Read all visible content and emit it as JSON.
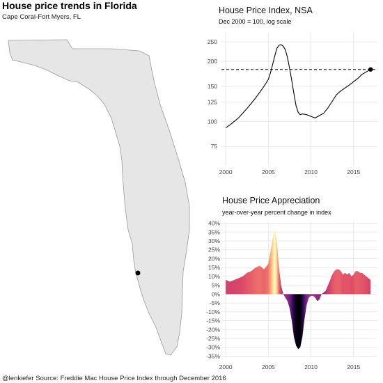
{
  "header": {
    "title": "House price trends in Florida",
    "subtitle": "Cape Coral-Fort Myers, FL"
  },
  "caption": "@lenkiefer Source: Freddie Mac House Price Index through December 2016",
  "map": {
    "state": "Florida",
    "fill_color": "#e6e6e6",
    "outline_color": "#9a9a9a",
    "marker_color": "#000000"
  },
  "chart_data": [
    {
      "type": "line",
      "title": "House Price Index, NSA",
      "subtitle": "Dec 2000 = 100, log scale",
      "scale": "log",
      "xlim": [
        1999.5,
        2017.8
      ],
      "ylim": [
        60,
        280
      ],
      "xticks": [
        2000,
        2005,
        2010,
        2015
      ],
      "xtick_labels": [
        "2000",
        "2005",
        "2010",
        "2015"
      ],
      "yticks": [
        75,
        100,
        125,
        150,
        200,
        250
      ],
      "ytick_labels": [
        "75",
        "100",
        "125",
        "150",
        "200",
        "250"
      ],
      "reference_line": 182,
      "end_point": {
        "x": 2017.0,
        "y": 182
      },
      "grid": true,
      "series": [
        {
          "x": [
            2000.0,
            2000.5,
            2001.0,
            2001.5,
            2002.0,
            2002.5,
            2003.0,
            2003.5,
            2004.0,
            2004.5,
            2005.0,
            2005.25,
            2005.5,
            2005.75,
            2006.0,
            2006.25,
            2006.5,
            2006.75,
            2007.0,
            2007.25,
            2007.5,
            2007.75,
            2008.0,
            2008.25,
            2008.5,
            2008.75,
            2009.0,
            2009.5,
            2010.0,
            2010.5,
            2011.0,
            2011.5,
            2012.0,
            2012.5,
            2013.0,
            2013.5,
            2014.0,
            2014.5,
            2015.0,
            2015.5,
            2016.0,
            2016.5,
            2017.0
          ],
          "values": [
            93,
            96,
            100,
            104,
            110,
            116,
            123,
            131,
            140,
            150,
            162,
            175,
            192,
            212,
            232,
            240,
            242,
            238,
            228,
            208,
            184,
            160,
            138,
            120,
            111,
            108,
            109,
            108,
            106,
            104,
            107,
            110,
            117,
            126,
            136,
            142,
            147,
            152,
            158,
            164,
            172,
            177,
            182
          ]
        }
      ]
    },
    {
      "type": "area",
      "title": "House Price Appreciation",
      "subtitle": "year-over-year percent change in index",
      "xlim": [
        1999.5,
        2017.8
      ],
      "ylim": [
        -36,
        41
      ],
      "xticks": [
        2000,
        2005,
        2010,
        2015
      ],
      "xtick_labels": [
        "2000",
        "2005",
        "2010",
        "2015"
      ],
      "yticks": [
        40,
        35,
        30,
        25,
        20,
        15,
        10,
        5,
        0,
        -5,
        -10,
        -15,
        -20,
        -25,
        -30,
        -35
      ],
      "ytick_labels": [
        "40%",
        "35%",
        "30%",
        "25%",
        "20%",
        "15%",
        "10%",
        "5%",
        "0%",
        "-5%",
        "-10%",
        "-15%",
        "-20%",
        "-25%",
        "-30%",
        "-35%"
      ],
      "grid": true,
      "color_scale": [
        "#000004",
        "#3b0f70",
        "#8c2981",
        "#de4968",
        "#fe9f6d",
        "#fcfdbf"
      ],
      "series": [
        {
          "x": [
            2000.0,
            2000.5,
            2001.0,
            2001.5,
            2002.0,
            2002.5,
            2003.0,
            2003.5,
            2004.0,
            2004.5,
            2005.0,
            2005.25,
            2005.5,
            2005.75,
            2006.0,
            2006.25,
            2006.5,
            2006.75,
            2007.0,
            2007.25,
            2007.5,
            2007.75,
            2008.0,
            2008.25,
            2008.5,
            2008.75,
            2009.0,
            2009.25,
            2009.5,
            2009.75,
            2010.0,
            2010.25,
            2010.5,
            2010.75,
            2011.0,
            2011.25,
            2011.5,
            2011.75,
            2012.0,
            2012.25,
            2012.5,
            2012.75,
            2013.0,
            2013.25,
            2013.5,
            2013.75,
            2014.0,
            2014.25,
            2014.5,
            2014.75,
            2015.0,
            2015.25,
            2015.5,
            2015.75,
            2016.0,
            2016.25,
            2016.5,
            2016.75,
            2017.0
          ],
          "values": [
            8,
            7,
            8,
            9,
            10,
            12,
            13,
            15,
            16,
            14,
            17,
            24,
            31,
            37,
            30,
            15,
            5,
            0,
            -2,
            -4,
            -8,
            -15,
            -24,
            -29,
            -31,
            -30,
            -24,
            -14,
            -6,
            -2,
            -1,
            -1,
            -2,
            -4,
            -3,
            0,
            1,
            2,
            5,
            8,
            11,
            13,
            14,
            14,
            13,
            11,
            12,
            11,
            12,
            10,
            11,
            13,
            13,
            12,
            12,
            11,
            10,
            9,
            8
          ]
        }
      ]
    }
  ]
}
